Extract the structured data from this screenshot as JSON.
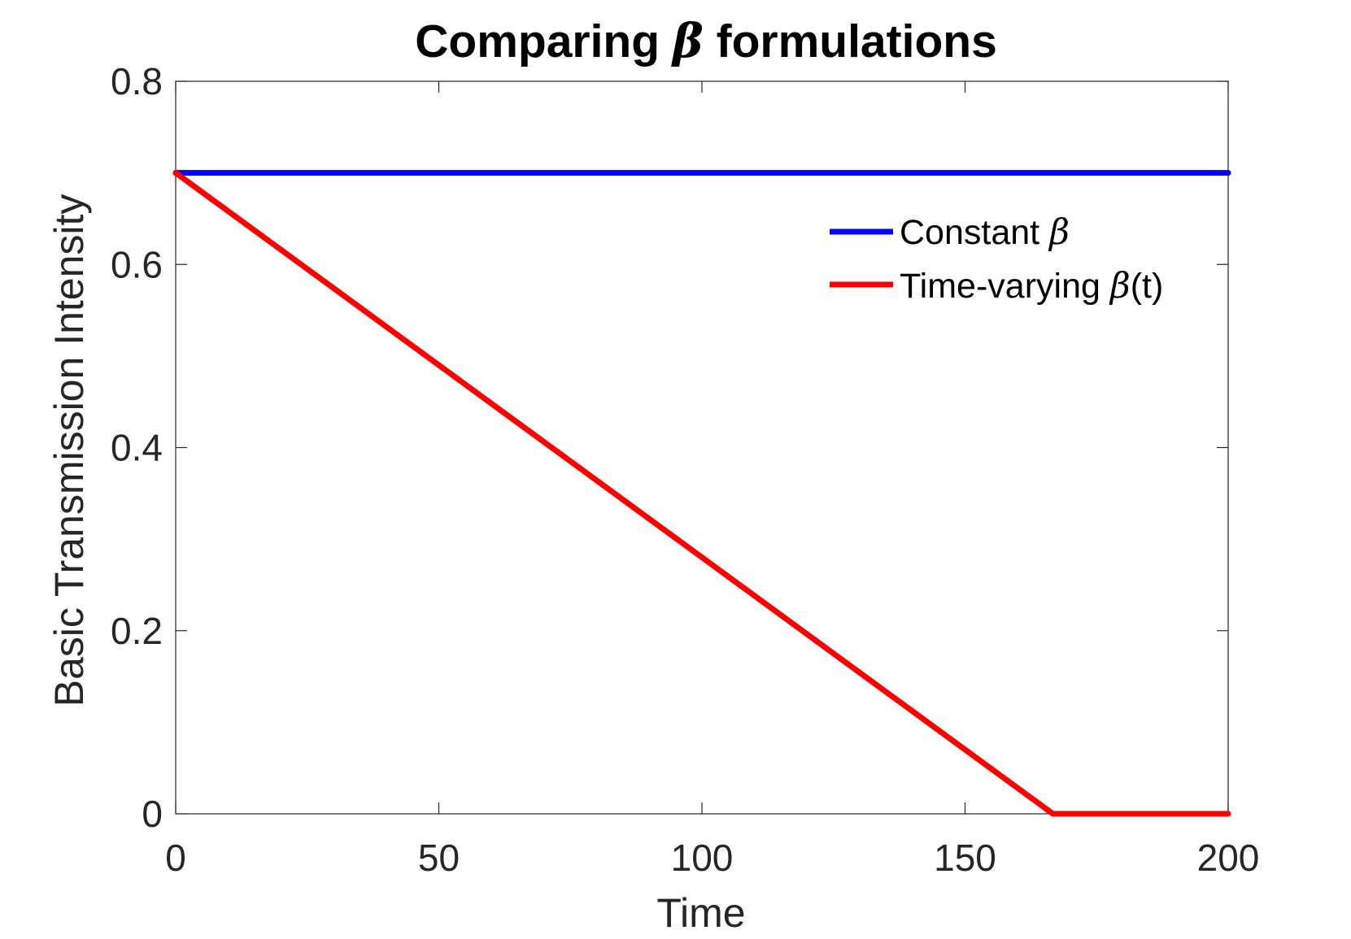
{
  "chart_data": {
    "type": "line",
    "title": {
      "prefix": "Comparing ",
      "symbol": "β",
      "suffix": " formulations"
    },
    "xlabel": "Time",
    "ylabel": "Basic Transmission Intensity",
    "xlim": [
      0,
      200
    ],
    "ylim": [
      0,
      0.8
    ],
    "xticks": [
      0,
      50,
      100,
      150,
      200
    ],
    "xtick_labels": [
      "0",
      "50",
      "100",
      "150",
      "200"
    ],
    "yticks": [
      0,
      0.2,
      0.4,
      0.6,
      0.8
    ],
    "ytick_labels": [
      "0",
      "0.2",
      "0.4",
      "0.6",
      "0.8"
    ],
    "grid": false,
    "legend_position": "top-right",
    "series": [
      {
        "name": "Constant β",
        "legend_text": "Constant ",
        "legend_symbol": "β",
        "legend_suffix": "",
        "color": "#0000ff",
        "x": [
          0,
          200
        ],
        "y": [
          0.7,
          0.7
        ]
      },
      {
        "name": "Time-varying β(t)",
        "legend_text": "Time-varying ",
        "legend_symbol": "β",
        "legend_suffix": "(t)",
        "color": "#ff0000",
        "x": [
          0,
          166.7,
          200
        ],
        "y": [
          0.7,
          0,
          0
        ]
      }
    ]
  }
}
